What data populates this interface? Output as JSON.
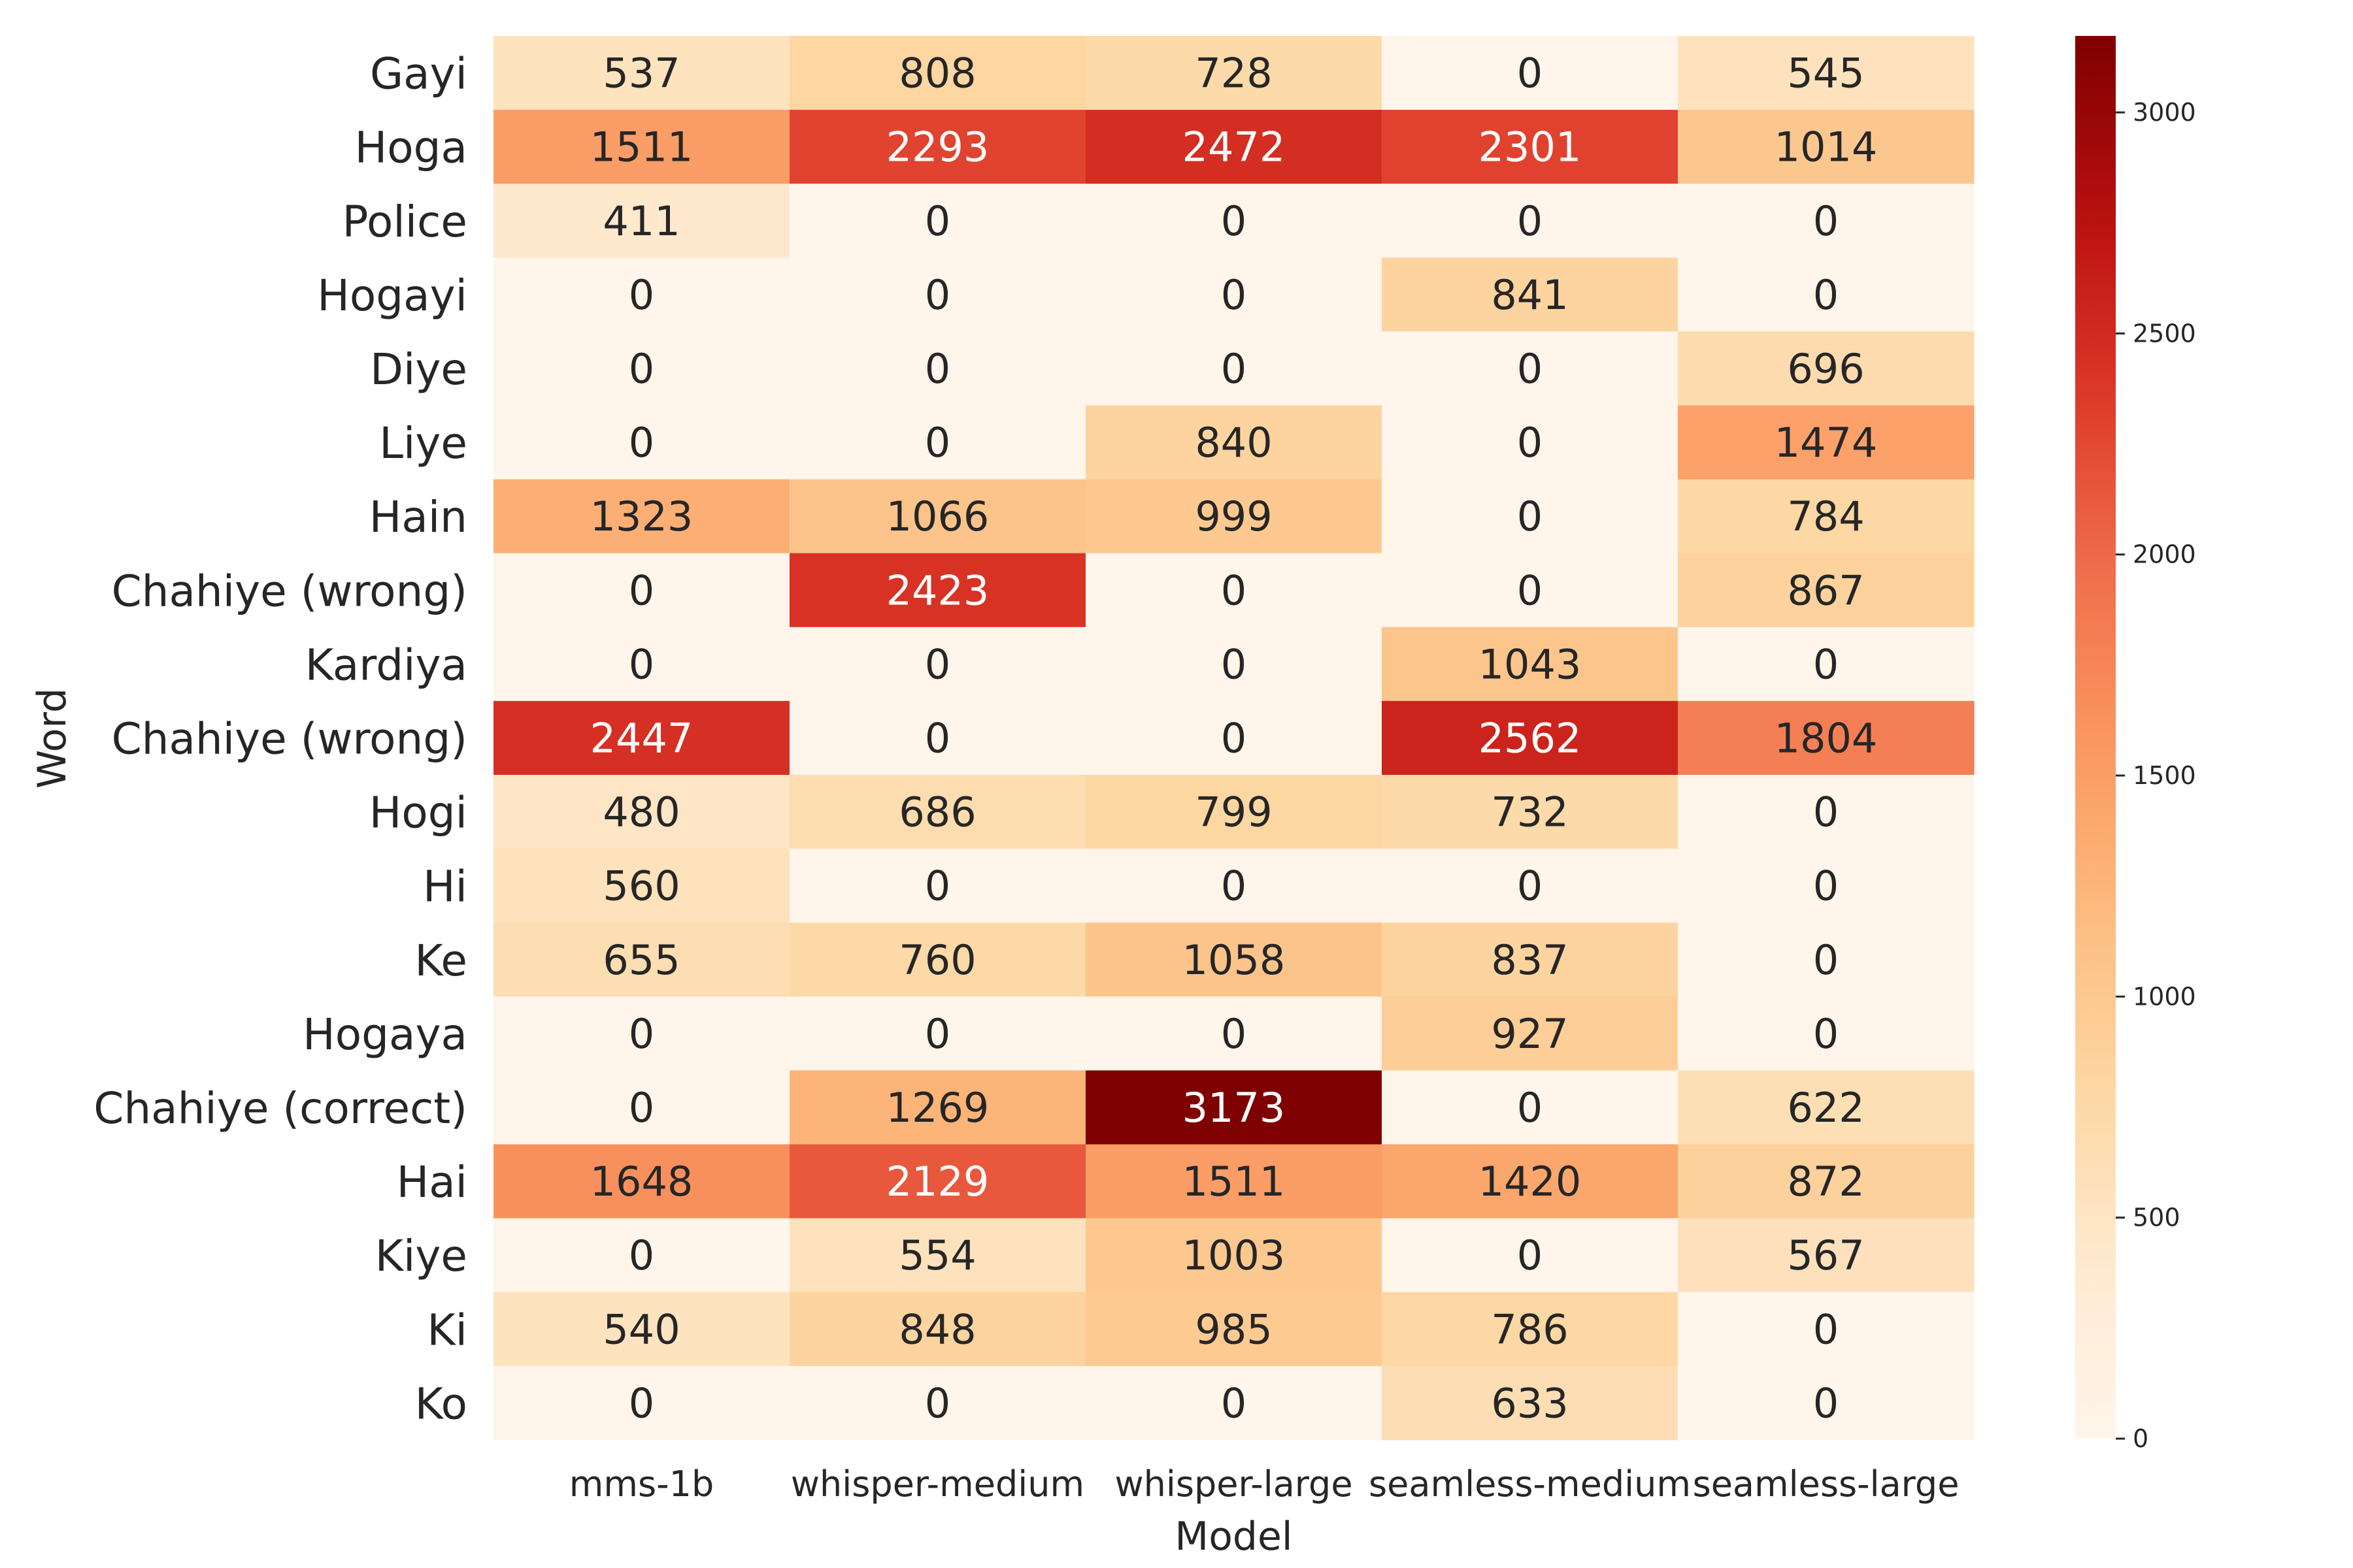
{
  "chart_data": {
    "type": "heatmap",
    "xlabel": "Model",
    "ylabel": "Word",
    "columns": [
      "mms-1b",
      "whisper-medium",
      "whisper-large",
      "seamless-medium",
      "seamless-large"
    ],
    "rows": [
      "Gayi",
      "Hoga",
      "Police",
      "Hogayi",
      "Diye",
      "Liye",
      "Hain",
      "Chahiye (wrong)",
      "Kardiya",
      "Chahiye (wrong)",
      "Hogi",
      "Hi",
      "Ke",
      "Hogaya",
      "Chahiye (correct)",
      "Hai",
      "Kiye",
      "Ki",
      "Ko"
    ],
    "values": [
      [
        537,
        808,
        728,
        0,
        545
      ],
      [
        1511,
        2293,
        2472,
        2301,
        1014
      ],
      [
        411,
        0,
        0,
        0,
        0
      ],
      [
        0,
        0,
        0,
        841,
        0
      ],
      [
        0,
        0,
        0,
        0,
        696
      ],
      [
        0,
        0,
        840,
        0,
        1474
      ],
      [
        1323,
        1066,
        999,
        0,
        784
      ],
      [
        0,
        2423,
        0,
        0,
        867
      ],
      [
        0,
        0,
        0,
        1043,
        0
      ],
      [
        2447,
        0,
        0,
        2562,
        1804
      ],
      [
        480,
        686,
        799,
        732,
        0
      ],
      [
        560,
        0,
        0,
        0,
        0
      ],
      [
        655,
        760,
        1058,
        837,
        0
      ],
      [
        0,
        0,
        0,
        927,
        0
      ],
      [
        0,
        1269,
        3173,
        0,
        622
      ],
      [
        1648,
        2129,
        1511,
        1420,
        872
      ],
      [
        0,
        554,
        1003,
        0,
        567
      ],
      [
        540,
        848,
        985,
        786,
        0
      ],
      [
        0,
        0,
        0,
        633,
        0
      ]
    ],
    "colormap": "OrRd-like (white-orange-red)",
    "colorbar": {
      "min": 0,
      "max": 3173,
      "ticks": [
        0,
        500,
        1000,
        1500,
        2000,
        2500,
        3000
      ]
    },
    "grid": false,
    "legend": "colorbar-right"
  }
}
